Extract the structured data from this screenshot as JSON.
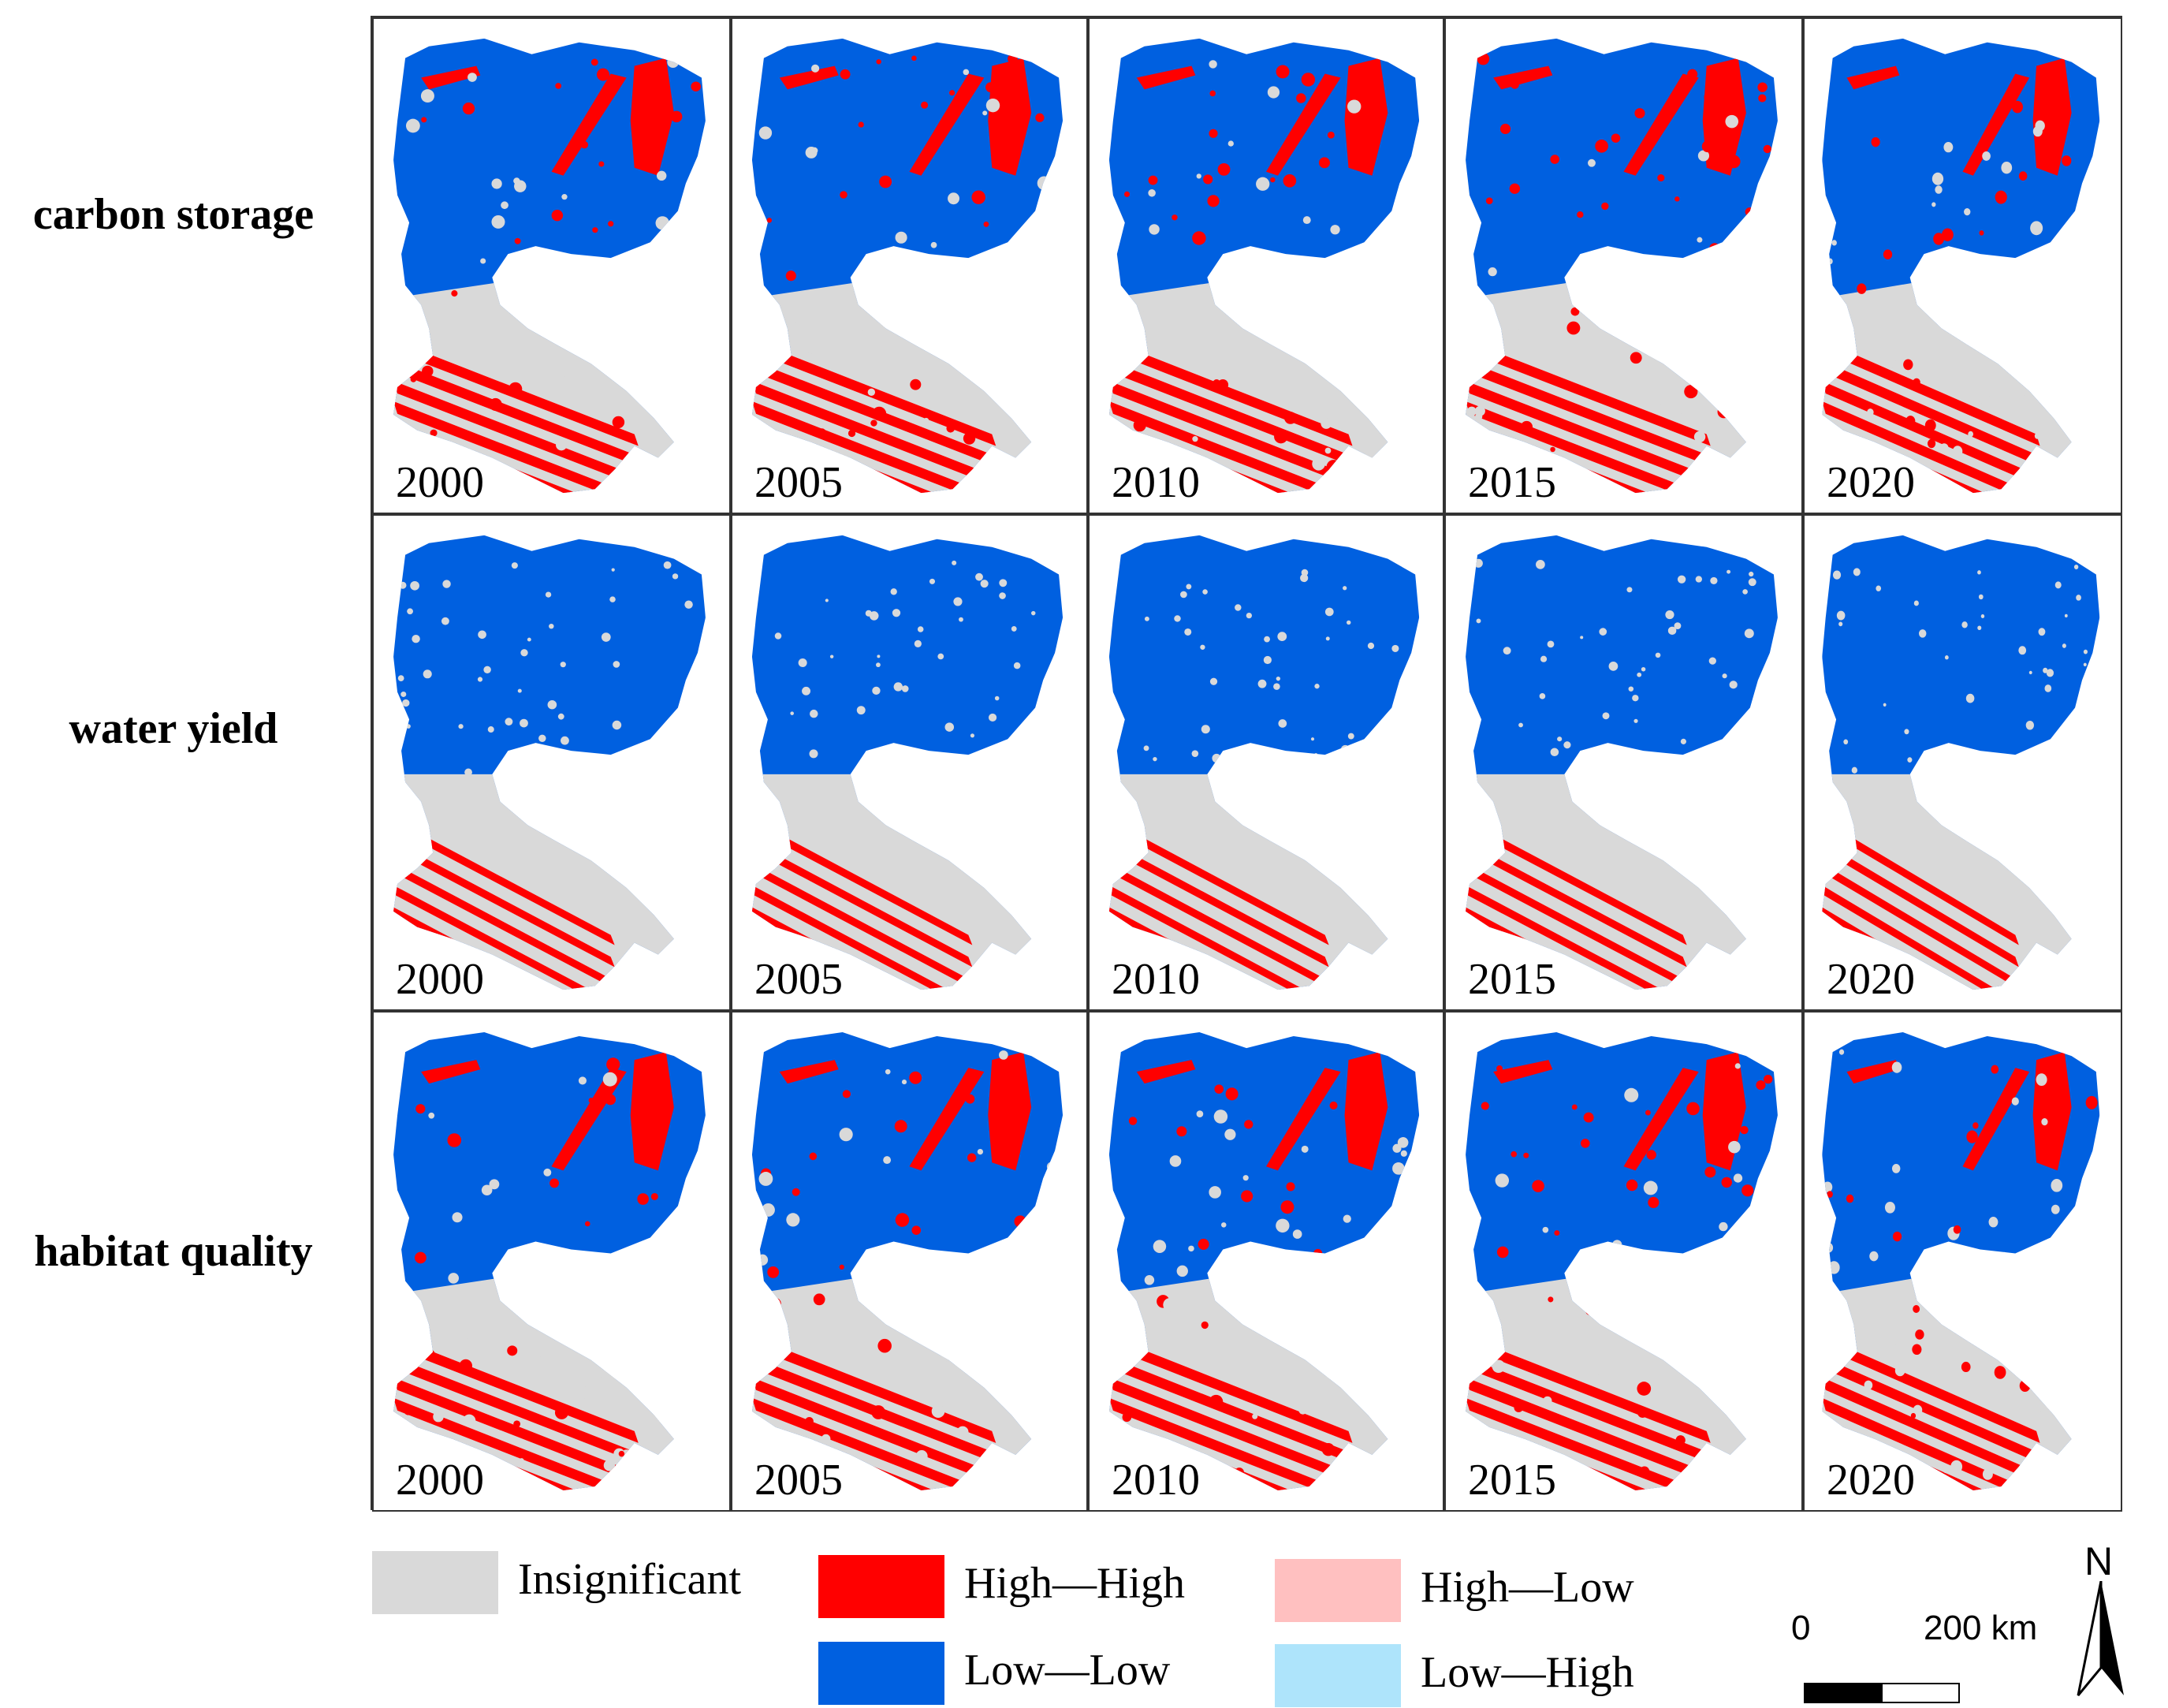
{
  "rows": [
    {
      "label": "carbon storage",
      "years": [
        "2000",
        "2005",
        "2010",
        "2015",
        "2020"
      ]
    },
    {
      "label": "water yield",
      "years": [
        "2000",
        "2005",
        "2010",
        "2015",
        "2020"
      ]
    },
    {
      "label": "habitat quality",
      "years": [
        "2000",
        "2005",
        "2010",
        "2015",
        "2020"
      ]
    }
  ],
  "legend": [
    {
      "label": "Insignificant",
      "color": "#d9d9d9"
    },
    {
      "label": "High—High",
      "color": "#ff0000"
    },
    {
      "label": "High—Low",
      "color": "#ffc0c0"
    },
    {
      "label": "Low—Low",
      "color": "#0060e0"
    },
    {
      "label": "Low—High",
      "color": "#aee4fb"
    }
  ],
  "scale_bar": {
    "start_label": "0",
    "end_label": "200 km"
  },
  "north_arrow": {
    "label": "N"
  }
}
